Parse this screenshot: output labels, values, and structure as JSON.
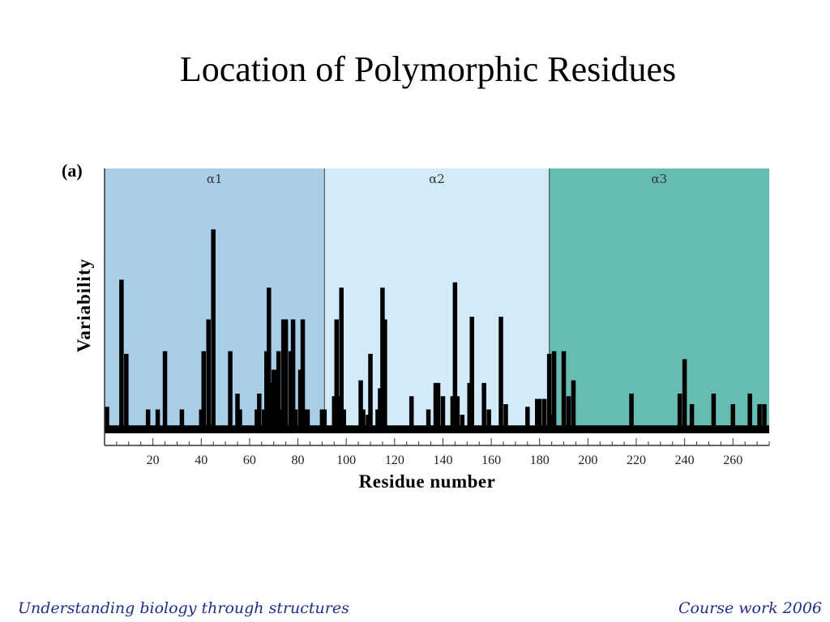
{
  "slide": {
    "title": "Location of Polymorphic Residues",
    "footer_left": "Understanding biology through structures",
    "footer_right": "Course work 2006"
  },
  "chart_data": {
    "type": "bar",
    "panel_label": "(a)",
    "title": "",
    "xlabel": "Residue number",
    "ylabel": "Variability",
    "xlim": [
      0,
      275
    ],
    "ylim": [
      0,
      100
    ],
    "xticks": [
      20,
      40,
      60,
      80,
      100,
      120,
      140,
      160,
      180,
      200,
      220,
      240,
      260
    ],
    "grid": false,
    "regions": [
      {
        "label": "α1",
        "start": 0,
        "end": 91,
        "color": "#a9cfe8"
      },
      {
        "label": "α2",
        "start": 91,
        "end": 184,
        "color": "#d3ebf8"
      },
      {
        "label": "α3",
        "start": 184,
        "end": 275,
        "color": "#66bcb3"
      }
    ],
    "bar_color": "#000000",
    "baseline_value": 3,
    "bars": [
      {
        "x": 1,
        "y": 10
      },
      {
        "x": 7,
        "y": 58
      },
      {
        "x": 9,
        "y": 30
      },
      {
        "x": 18,
        "y": 9
      },
      {
        "x": 22,
        "y": 9
      },
      {
        "x": 25,
        "y": 31
      },
      {
        "x": 32,
        "y": 9
      },
      {
        "x": 40,
        "y": 9
      },
      {
        "x": 41,
        "y": 31
      },
      {
        "x": 43,
        "y": 43
      },
      {
        "x": 45,
        "y": 77
      },
      {
        "x": 52,
        "y": 31
      },
      {
        "x": 55,
        "y": 15
      },
      {
        "x": 56,
        "y": 9
      },
      {
        "x": 63,
        "y": 9
      },
      {
        "x": 64,
        "y": 15
      },
      {
        "x": 66,
        "y": 9
      },
      {
        "x": 67,
        "y": 31
      },
      {
        "x": 68,
        "y": 55
      },
      {
        "x": 69,
        "y": 19
      },
      {
        "x": 70,
        "y": 24
      },
      {
        "x": 71,
        "y": 24
      },
      {
        "x": 72,
        "y": 31
      },
      {
        "x": 73,
        "y": 9
      },
      {
        "x": 74,
        "y": 43
      },
      {
        "x": 75,
        "y": 43
      },
      {
        "x": 77,
        "y": 31
      },
      {
        "x": 78,
        "y": 43
      },
      {
        "x": 79,
        "y": 9
      },
      {
        "x": 81,
        "y": 24
      },
      {
        "x": 82,
        "y": 43
      },
      {
        "x": 83,
        "y": 9
      },
      {
        "x": 84,
        "y": 9
      },
      {
        "x": 90,
        "y": 9
      },
      {
        "x": 91,
        "y": 9
      },
      {
        "x": 95,
        "y": 14
      },
      {
        "x": 96,
        "y": 43
      },
      {
        "x": 97,
        "y": 14
      },
      {
        "x": 98,
        "y": 55
      },
      {
        "x": 99,
        "y": 9
      },
      {
        "x": 106,
        "y": 20
      },
      {
        "x": 107,
        "y": 9
      },
      {
        "x": 109,
        "y": 7
      },
      {
        "x": 110,
        "y": 30
      },
      {
        "x": 113,
        "y": 9
      },
      {
        "x": 114,
        "y": 17
      },
      {
        "x": 115,
        "y": 55
      },
      {
        "x": 116,
        "y": 43
      },
      {
        "x": 127,
        "y": 14
      },
      {
        "x": 134,
        "y": 9
      },
      {
        "x": 137,
        "y": 19
      },
      {
        "x": 138,
        "y": 19
      },
      {
        "x": 140,
        "y": 14
      },
      {
        "x": 144,
        "y": 14
      },
      {
        "x": 145,
        "y": 57
      },
      {
        "x": 146,
        "y": 14
      },
      {
        "x": 148,
        "y": 7
      },
      {
        "x": 151,
        "y": 19
      },
      {
        "x": 152,
        "y": 44
      },
      {
        "x": 157,
        "y": 19
      },
      {
        "x": 159,
        "y": 9
      },
      {
        "x": 164,
        "y": 44
      },
      {
        "x": 166,
        "y": 11
      },
      {
        "x": 175,
        "y": 10
      },
      {
        "x": 179,
        "y": 13
      },
      {
        "x": 180,
        "y": 13
      },
      {
        "x": 182,
        "y": 13
      },
      {
        "x": 184,
        "y": 30
      },
      {
        "x": 185,
        "y": 7
      },
      {
        "x": 186,
        "y": 31
      },
      {
        "x": 190,
        "y": 31
      },
      {
        "x": 192,
        "y": 14
      },
      {
        "x": 194,
        "y": 20
      },
      {
        "x": 218,
        "y": 15
      },
      {
        "x": 238,
        "y": 15
      },
      {
        "x": 240,
        "y": 28
      },
      {
        "x": 243,
        "y": 11
      },
      {
        "x": 252,
        "y": 15
      },
      {
        "x": 260,
        "y": 11
      },
      {
        "x": 267,
        "y": 15
      },
      {
        "x": 271,
        "y": 11
      },
      {
        "x": 273,
        "y": 11
      }
    ]
  }
}
